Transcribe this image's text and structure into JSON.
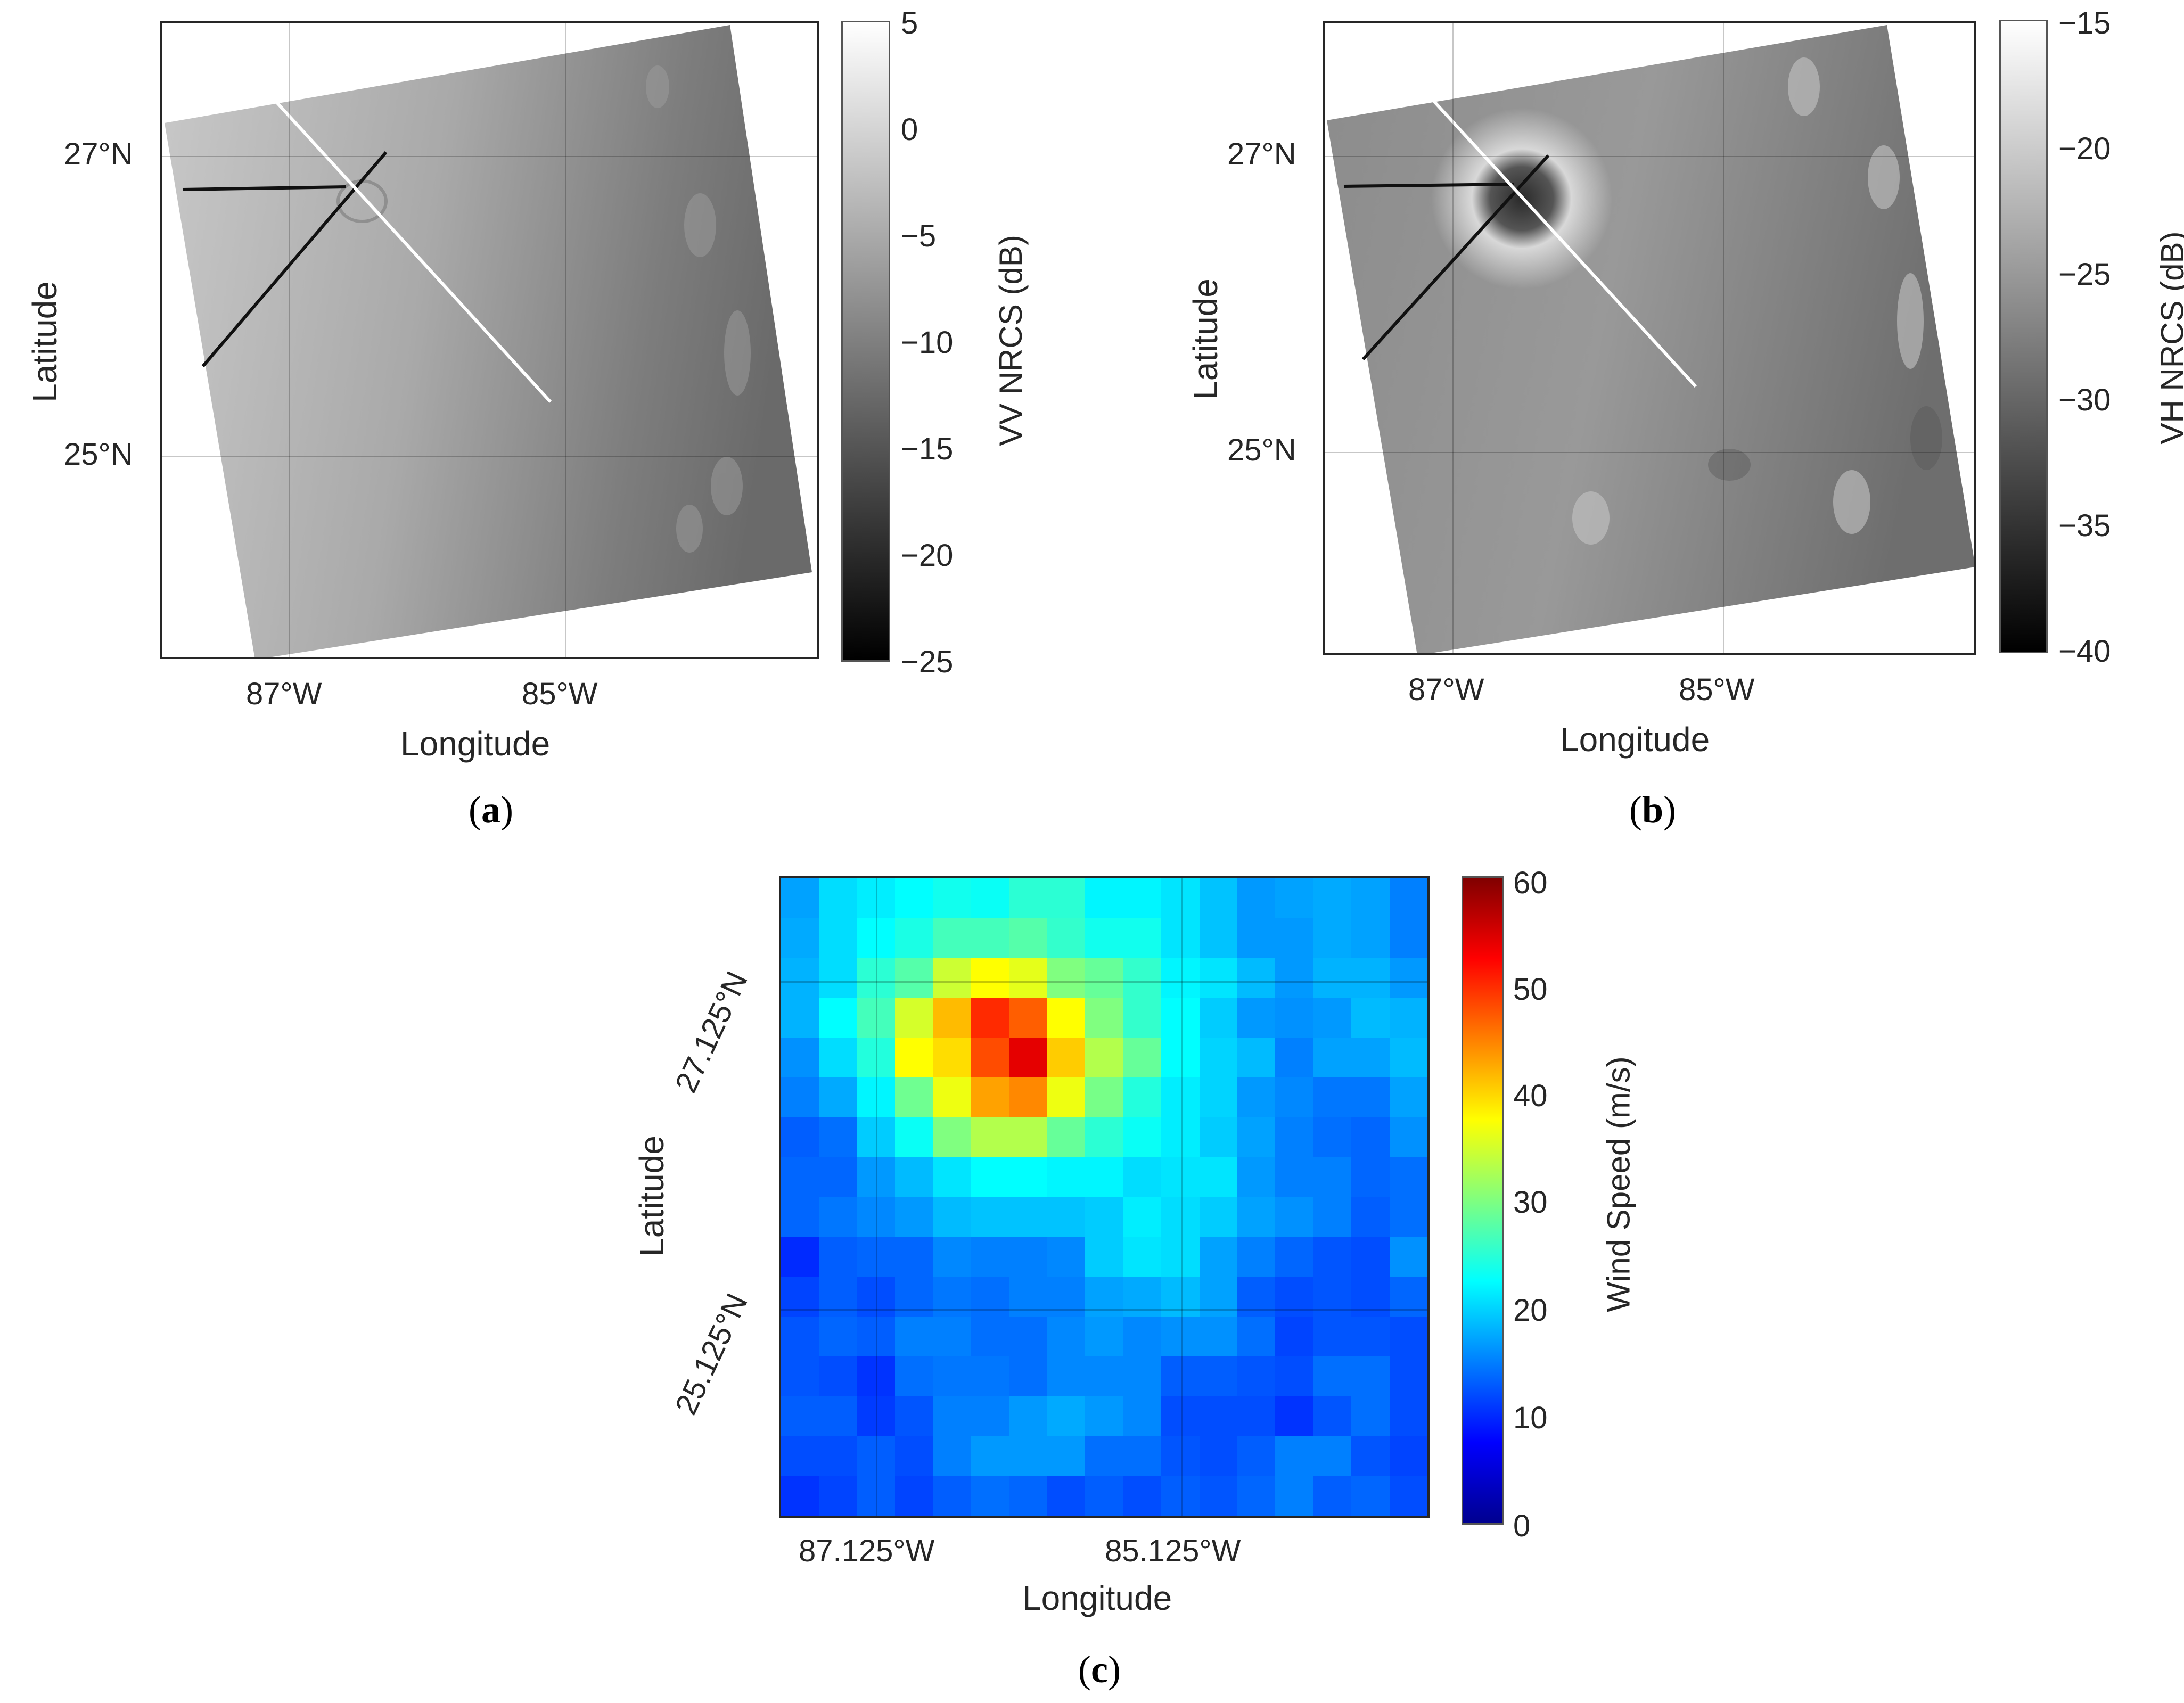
{
  "panels": {
    "a": {
      "caption_letter": "a",
      "xlabel": "Longitude",
      "ylabel": "Latitude",
      "xticks": [
        "87°W",
        "85°W"
      ],
      "yticks": [
        "27°N",
        "25°N"
      ],
      "colorbar_label": "VV NRCS (dB)",
      "colorbar_ticks": [
        "5",
        "0",
        "−5",
        "−10",
        "−15",
        "−20",
        "−25"
      ]
    },
    "b": {
      "caption_letter": "b",
      "xlabel": "Longitude",
      "ylabel": "Latitude",
      "xticks": [
        "87°W",
        "85°W"
      ],
      "yticks": [
        "27°N",
        "25°N"
      ],
      "colorbar_label": "VH NRCS (dB)",
      "colorbar_ticks": [
        "−15",
        "−20",
        "−25",
        "−30",
        "−35",
        "−40"
      ]
    },
    "c": {
      "caption_letter": "c",
      "xlabel": "Longitude",
      "ylabel": "Latitude",
      "xticks": [
        "87.125°W",
        "85.125°W"
      ],
      "yticks": [
        "27.125°N",
        "25.125°N"
      ],
      "colorbar_label": "Wind Speed (m/s)",
      "colorbar_ticks": [
        "60",
        "50",
        "40",
        "30",
        "20",
        "10",
        "0"
      ]
    }
  },
  "chart_data": [
    {
      "type": "heatmap",
      "panel": "a",
      "title": "",
      "description": "Grayscale SAR VV-polarization NRCS image of hurricane, rotated swath; white track line and black track lines crossing near eye",
      "xlabel": "Longitude",
      "ylabel": "Latitude",
      "xticks": [
        "87°W",
        "85°W"
      ],
      "yticks": [
        "27°N",
        "25°N"
      ],
      "colorbar": {
        "label": "VV NRCS (dB)",
        "min": -25,
        "max": 5,
        "ticks": [
          5,
          0,
          -5,
          -10,
          -15,
          -20,
          -25
        ],
        "colormap": "gray"
      },
      "grid": true
    },
    {
      "type": "heatmap",
      "panel": "b",
      "title": "",
      "description": "Grayscale SAR VH-polarization NRCS image; dark eye with bright surrounding eyewall; same track overlays",
      "xlabel": "Longitude",
      "ylabel": "Latitude",
      "xticks": [
        "87°W",
        "85°W"
      ],
      "yticks": [
        "27°N",
        "25°N"
      ],
      "colorbar": {
        "label": "VH NRCS (dB)",
        "min": -40,
        "max": -15,
        "ticks": [
          -15,
          -20,
          -25,
          -30,
          -35,
          -40
        ],
        "colormap": "gray"
      },
      "grid": true
    },
    {
      "type": "heatmap",
      "panel": "c",
      "title": "",
      "xlabel": "Longitude",
      "ylabel": "Latitude",
      "xticks": [
        "87.125°W",
        "85.125°W"
      ],
      "yticks": [
        "27.125°N",
        "25.125°N"
      ],
      "colorbar": {
        "label": "Wind Speed (m/s)",
        "min": 0,
        "max": 60,
        "ticks": [
          0,
          10,
          20,
          30,
          40,
          50,
          60
        ],
        "colormap": "jet"
      },
      "grid": true,
      "rows": 16,
      "cols": 17,
      "values": [
        [
          17,
          20.5,
          21.5,
          22.5,
          23.5,
          23,
          25,
          25,
          22,
          22,
          21,
          19,
          16.5,
          17,
          17.5,
          17,
          15
        ],
        [
          17.5,
          20.5,
          22.5,
          24,
          26.5,
          26.5,
          27.5,
          25.5,
          23.5,
          23.5,
          21,
          19,
          16.5,
          16.5,
          17.5,
          17,
          15
        ],
        [
          18,
          20.5,
          25,
          27.5,
          34.5,
          37.5,
          36,
          30,
          28.5,
          25.5,
          22,
          21,
          18.5,
          16.5,
          18,
          18,
          16.5
        ],
        [
          18,
          22.5,
          26.5,
          35,
          41.5,
          50,
          47,
          37.5,
          30,
          25.5,
          22.5,
          19.5,
          16.5,
          16,
          16.5,
          18.5,
          18
        ],
        [
          16,
          20.5,
          24.5,
          37.5,
          39.5,
          48,
          54,
          40.5,
          33,
          28.5,
          22.5,
          20,
          18.5,
          15,
          17,
          17,
          18.5
        ],
        [
          15,
          17.5,
          22,
          29,
          36.5,
          43,
          44.5,
          36.5,
          29.5,
          24.5,
          21.5,
          20,
          16.5,
          15.5,
          14.5,
          14.5,
          17
        ],
        [
          13,
          14,
          19.5,
          23,
          30,
          33,
          33,
          28.5,
          25,
          23,
          21.5,
          19.5,
          17,
          15,
          14,
          13.5,
          16
        ],
        [
          13.5,
          13.5,
          16.5,
          18.5,
          21,
          22.5,
          22.5,
          22,
          22,
          20.5,
          21,
          21,
          16.5,
          15,
          15,
          13.5,
          14
        ],
        [
          13.5,
          14.5,
          15.5,
          16.5,
          18.5,
          19,
          19,
          19,
          19.5,
          21.5,
          20.5,
          19.5,
          17,
          16,
          15,
          13,
          14
        ],
        [
          10,
          13,
          13.5,
          13.5,
          15.5,
          15,
          15,
          15.5,
          19.5,
          21,
          20.5,
          17,
          15,
          13.5,
          12.5,
          12,
          16
        ],
        [
          11.5,
          13,
          12,
          13.5,
          14.5,
          14,
          15,
          15,
          17,
          17.5,
          18.5,
          17,
          13,
          12,
          12.5,
          12,
          13.5
        ],
        [
          12.5,
          13.5,
          13,
          15,
          15,
          14,
          14,
          15.5,
          16.5,
          15.5,
          16,
          16,
          14,
          11.5,
          12.5,
          12.5,
          12
        ],
        [
          12.5,
          12,
          10.5,
          14,
          14.5,
          14.5,
          14,
          15.5,
          15.5,
          15.5,
          13,
          13,
          12.5,
          12,
          14,
          14,
          12
        ],
        [
          13,
          13,
          11,
          12.5,
          15,
          15,
          16.5,
          17.5,
          16.5,
          15.5,
          12,
          12,
          12,
          10.5,
          12.5,
          14,
          12
        ],
        [
          12,
          12,
          13,
          12,
          15,
          16.5,
          16.5,
          16.5,
          14,
          14,
          12.5,
          12,
          13,
          15,
          15,
          12.5,
          11.5
        ],
        [
          10.5,
          11.5,
          13,
          11.5,
          13,
          14,
          13.5,
          12,
          13,
          12,
          13,
          12.5,
          13.5,
          15,
          13,
          13.5,
          12
        ]
      ]
    }
  ]
}
